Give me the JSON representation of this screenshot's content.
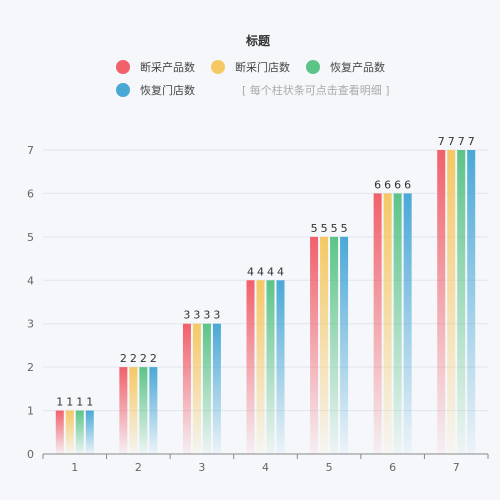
{
  "chart_data": {
    "type": "bar",
    "title": "标题",
    "hint": "[ 每个柱状条可点击查看明细 ]",
    "categories": [
      "1",
      "2",
      "3",
      "4",
      "5",
      "6",
      "7"
    ],
    "series": [
      {
        "name": "断采产品数",
        "color": "#f1606b",
        "values": [
          1,
          2,
          3,
          4,
          5,
          6,
          7
        ]
      },
      {
        "name": "断采门店数",
        "color": "#f5c864",
        "values": [
          1,
          2,
          3,
          4,
          5,
          6,
          7
        ]
      },
      {
        "name": "恢复产品数",
        "color": "#5cc488",
        "values": [
          1,
          2,
          3,
          4,
          5,
          6,
          7
        ]
      },
      {
        "name": "恢复门店数",
        "color": "#4aa8d6",
        "values": [
          1,
          2,
          3,
          4,
          5,
          6,
          7
        ]
      }
    ],
    "yticks": [
      0,
      1,
      2,
      3,
      4,
      5,
      6,
      7
    ],
    "ylim": [
      0,
      7
    ],
    "xlabel": "",
    "ylabel": "",
    "grid": true,
    "legend_position": "top"
  }
}
